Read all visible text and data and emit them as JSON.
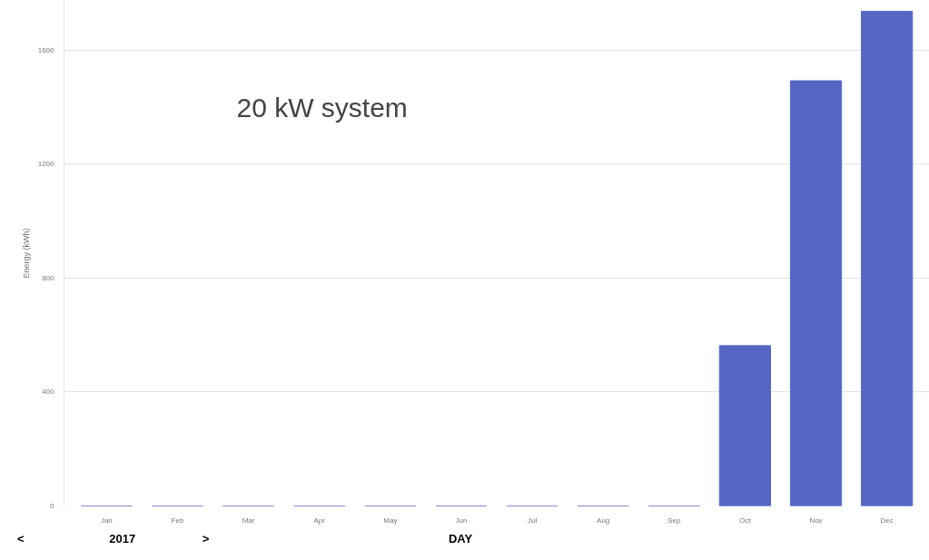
{
  "chart_data": {
    "type": "bar",
    "categories": [
      "Jan",
      "Feb",
      "Mar",
      "Apr",
      "May",
      "Jun",
      "Jul",
      "Aug",
      "Sep",
      "Oct",
      "Nov",
      "Dec"
    ],
    "values": [
      0,
      0,
      0,
      0,
      0,
      0,
      0,
      0,
      0,
      563,
      1493,
      1737
    ],
    "color": "#5567c4",
    "ylabel": "Energy (kWh)",
    "ylim": [
      0,
      1775
    ],
    "yticks": [
      0,
      400,
      800,
      1200,
      1600
    ],
    "grid": "y",
    "annotations": [
      "20 kW system",
      "<",
      "2017",
      ">",
      "DAY"
    ]
  }
}
